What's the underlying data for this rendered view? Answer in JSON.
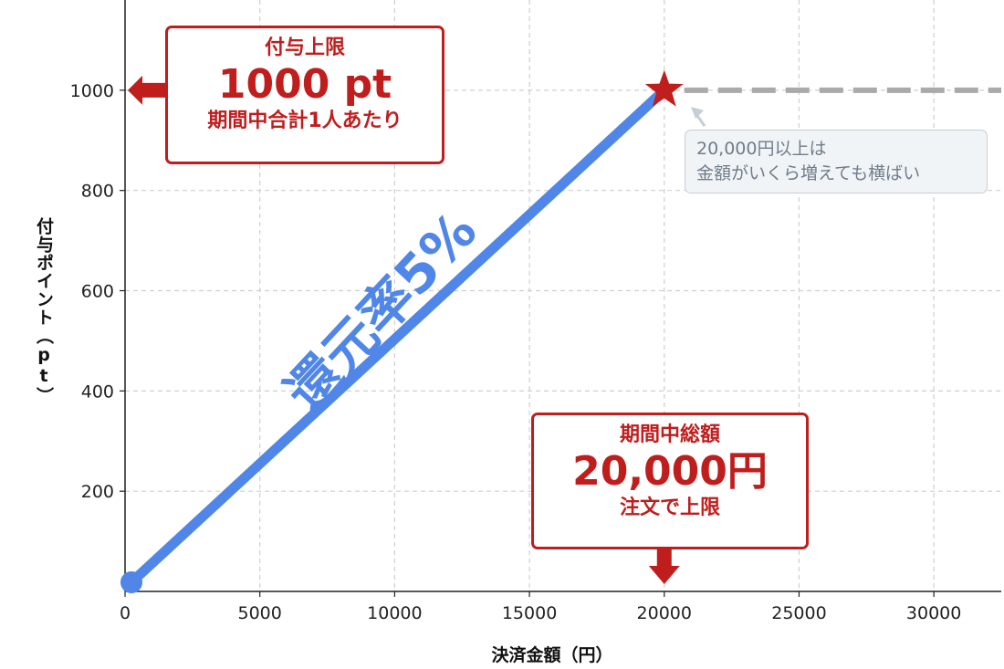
{
  "chart_data": {
    "type": "line",
    "xlabel": "決済金額（円）",
    "ylabel": "付与ポイント（pt）",
    "xlim": [
      0,
      32500
    ],
    "ylim": [
      0,
      1180
    ],
    "x_ticks": [
      0,
      5000,
      10000,
      15000,
      20000,
      25000,
      30000
    ],
    "y_ticks": [
      200,
      400,
      600,
      800,
      1000
    ],
    "grid": true,
    "series": [
      {
        "x": [
          0,
          20000
        ],
        "y": [
          0,
          1000
        ],
        "color": "#4f86e8",
        "style": "solid"
      },
      {
        "x": [
          20000,
          32500
        ],
        "y": [
          1000,
          1000
        ],
        "color": "#aaaaaa",
        "style": "dashed"
      }
    ],
    "annotations": {
      "rate_label": "還元率5%",
      "cap_box": {
        "line1": "付与上限",
        "big": "1000 pt",
        "line3": "期間中合計1人あたり"
      },
      "total_box": {
        "line1": "期間中総額",
        "big": "20,000円",
        "line3": "注文で上限"
      },
      "note": {
        "line1": "20,000円以上は",
        "line2": "金額がいくら増えても横ばい"
      }
    }
  },
  "colors": {
    "line": "#4f86e8",
    "accent": "#c01d1d",
    "flat": "#aaaaaa",
    "note_text": "#6f7d8a"
  },
  "icons": {
    "start": "circle-marker-icon",
    "cap": "star-marker-icon"
  }
}
